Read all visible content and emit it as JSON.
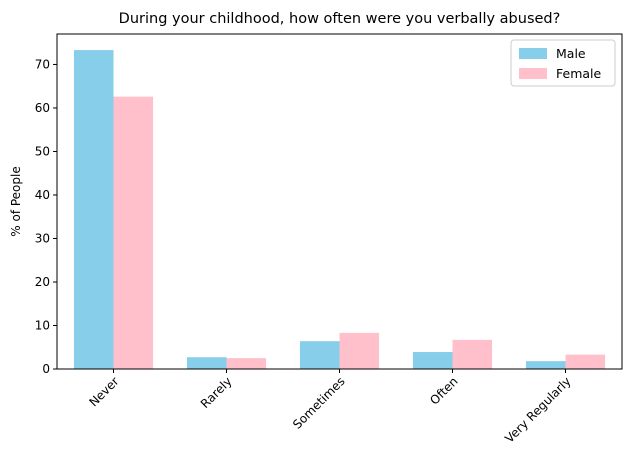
{
  "chart_data": {
    "type": "bar",
    "title": "During your childhood, how often were you verbally abused?",
    "xlabel": "",
    "ylabel": "% of People",
    "categories": [
      "Never",
      "Rarely",
      "Sometimes",
      "Often",
      "Very Regularly"
    ],
    "series": [
      {
        "name": "Male",
        "color": "#87CEEB",
        "values": [
          73.3,
          2.7,
          6.4,
          3.9,
          1.8
        ]
      },
      {
        "name": "Female",
        "color": "#FFC0CB",
        "values": [
          62.6,
          2.5,
          8.3,
          6.7,
          3.3
        ]
      }
    ],
    "ylim": [
      0,
      77
    ],
    "yticks": [
      0,
      10,
      20,
      30,
      40,
      50,
      60,
      70
    ],
    "grid": false,
    "legend_position": "top-right"
  }
}
